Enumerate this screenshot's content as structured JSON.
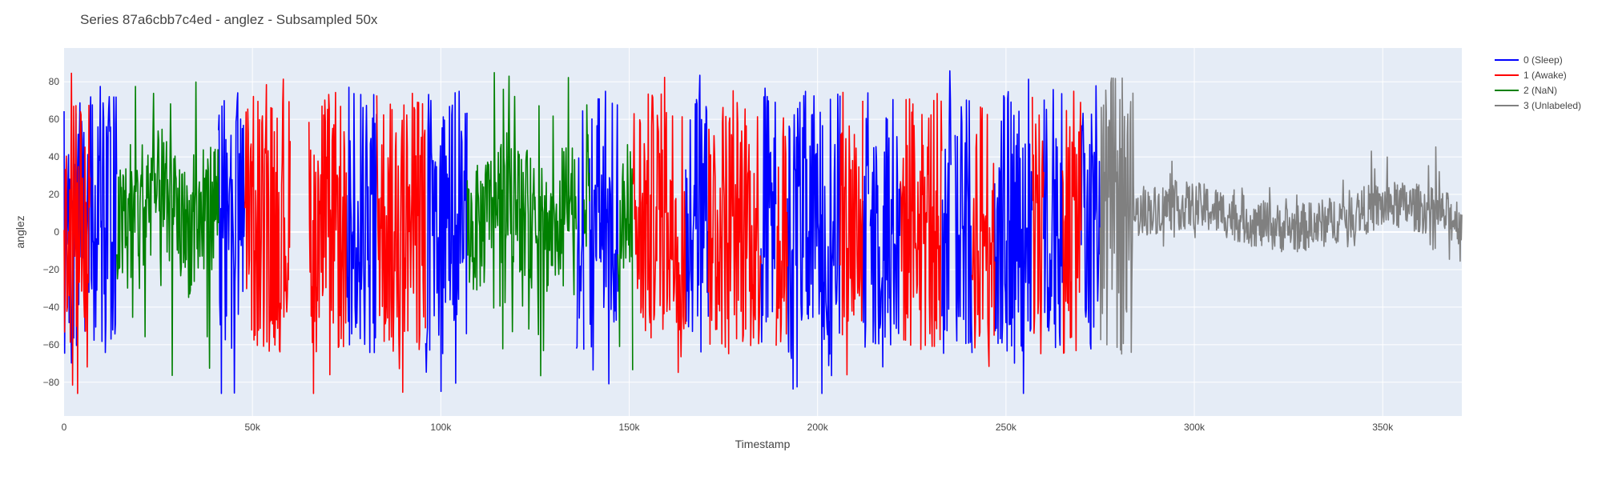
{
  "chart_data": {
    "type": "line",
    "title": "Series 87a6cbb7c4ed - anglez - Subsampled 50x",
    "xlabel": "Timestamp",
    "ylabel": "anglez",
    "xlim": [
      0,
      371000
    ],
    "ylim": [
      -98,
      98
    ],
    "x_ticks": [
      0,
      50000,
      100000,
      150000,
      200000,
      250000,
      300000,
      350000
    ],
    "x_tick_labels": [
      "0",
      "50k",
      "100k",
      "150k",
      "200k",
      "250k",
      "300k",
      "350k"
    ],
    "y_ticks": [
      -80,
      -60,
      -40,
      -20,
      0,
      20,
      40,
      60,
      80
    ],
    "y_tick_labels": [
      "−80",
      "−60",
      "−40",
      "−20",
      "0",
      "20",
      "40",
      "60",
      "80"
    ],
    "grid": true,
    "legend_position": "top-right",
    "series": [
      {
        "name": "0 (Sleep)",
        "color": "#0000ff",
        "segments": [
          [
            0,
            14000
          ],
          [
            41000,
            48000
          ],
          [
            75000,
            83000
          ],
          [
            96000,
            107000
          ],
          [
            136000,
            138000
          ],
          [
            139500,
            147000
          ],
          [
            165000,
            171000
          ],
          [
            185000,
            189000
          ],
          [
            192000,
            206000
          ],
          [
            212000,
            213500
          ],
          [
            214000,
            222000
          ],
          [
            233000,
            235500
          ],
          [
            236500,
            241000
          ],
          [
            247000,
            257000
          ],
          [
            260000,
            265000
          ],
          [
            270000,
            275000
          ]
        ]
      },
      {
        "name": "1 (Awake)",
        "color": "#ff0000",
        "segments": [
          [
            0,
            7000
          ],
          [
            48000,
            60000
          ],
          [
            65000,
            75000
          ],
          [
            83000,
            96000
          ],
          [
            151000,
            165000
          ],
          [
            171000,
            185000
          ],
          [
            189000,
            192000
          ],
          [
            206000,
            212000
          ],
          [
            222000,
            233000
          ],
          [
            241000,
            247000
          ],
          [
            257000,
            260000
          ],
          [
            265000,
            270000
          ]
        ]
      },
      {
        "name": "2 (NaN)",
        "color": "#008000",
        "segments": [
          [
            14000,
            41000
          ],
          [
            107000,
            136000
          ],
          [
            138000,
            139500
          ],
          [
            147000,
            151000
          ]
        ]
      },
      {
        "name": "3 (Unlabeled)",
        "color": "#808080",
        "segments": [
          [
            275000,
            371000
          ]
        ]
      }
    ]
  }
}
